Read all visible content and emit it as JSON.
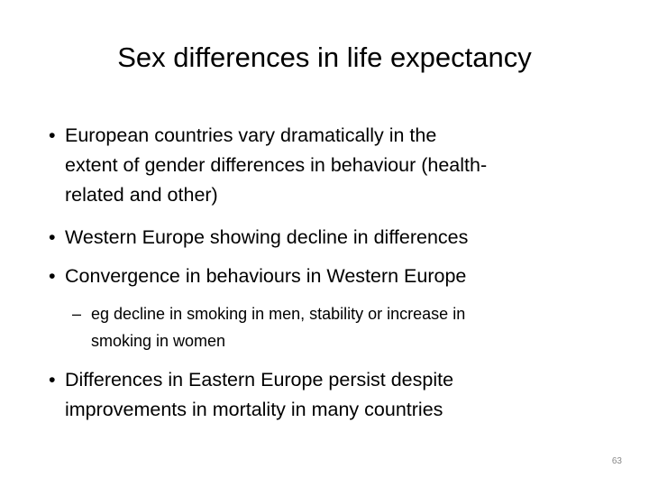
{
  "slide": {
    "title": "Sex differences in life expectancy",
    "bullets": [
      {
        "lines": [
          "European countries vary dramatically in the",
          "extent of gender differences in behaviour (health-",
          "related and other)"
        ]
      },
      {
        "lines": [
          "Western Europe showing decline in differences"
        ]
      },
      {
        "lines": [
          "Convergence in behaviours in Western Europe"
        ],
        "sub": [
          {
            "lines": [
              "eg decline in smoking in men, stability or increase in",
              "smoking in women"
            ]
          }
        ]
      },
      {
        "lines": [
          "Differences in Eastern Europe persist despite",
          "improvements in mortality in many countries"
        ]
      }
    ],
    "page_number": "63"
  }
}
